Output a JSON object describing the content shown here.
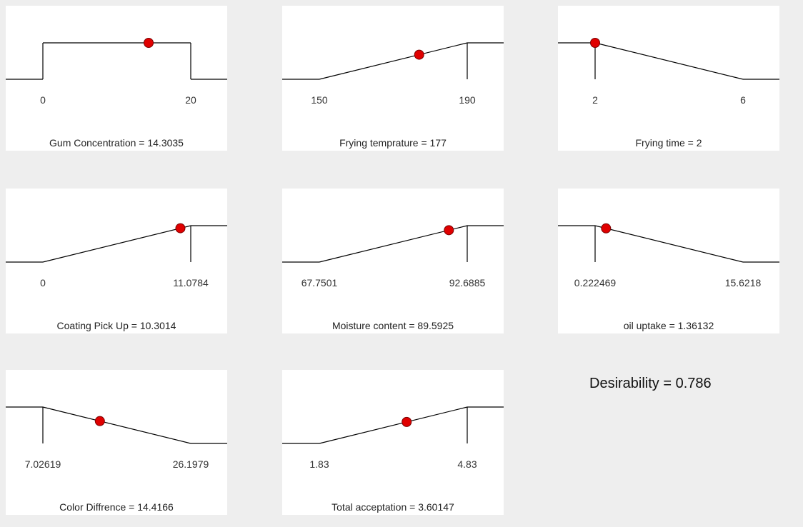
{
  "chart_data": [
    {
      "type": "line",
      "shape": "interval",
      "tick_low": "0",
      "tick_high": "20",
      "low": 0,
      "high": 20,
      "value": 14.3035,
      "label": "Gum Concentration = 14.3035"
    },
    {
      "type": "line",
      "shape": "ramp-up",
      "tick_low": "150",
      "tick_high": "190",
      "low": 150,
      "high": 190,
      "value": 177,
      "label": "Frying temprature = 177"
    },
    {
      "type": "line",
      "shape": "ramp-down",
      "tick_low": "2",
      "tick_high": "6",
      "low": 2,
      "high": 6,
      "value": 2,
      "label": "Frying time = 2"
    },
    {
      "type": "line",
      "shape": "ramp-up",
      "tick_low": "0",
      "tick_high": "11.0784",
      "low": 0,
      "high": 11.0784,
      "value": 10.3014,
      "label": "Coating Pick Up = 10.3014"
    },
    {
      "type": "line",
      "shape": "ramp-up",
      "tick_low": "67.7501",
      "tick_high": "92.6885",
      "low": 67.7501,
      "high": 92.6885,
      "value": 89.5925,
      "label": "Moisture content = 89.5925"
    },
    {
      "type": "line",
      "shape": "ramp-down",
      "tick_low": "0.222469",
      "tick_high": "15.6218",
      "low": 0.222469,
      "high": 15.6218,
      "value": 1.36132,
      "label": "oil uptake = 1.36132"
    },
    {
      "type": "line",
      "shape": "ramp-down",
      "tick_low": "7.02619",
      "tick_high": "26.1979",
      "low": 7.02619,
      "high": 26.1979,
      "value": 14.4166,
      "label": "Color Diffrence = 14.4166"
    },
    {
      "type": "line",
      "shape": "ramp-up",
      "tick_low": "1.83",
      "tick_high": "4.83",
      "low": 1.83,
      "high": 4.83,
      "value": 3.60147,
      "label": "Total acceptation = 3.60147"
    }
  ],
  "desirability_label": "Desirability = 0.786",
  "colors": {
    "marker": "#e00000",
    "line": "#000000"
  }
}
